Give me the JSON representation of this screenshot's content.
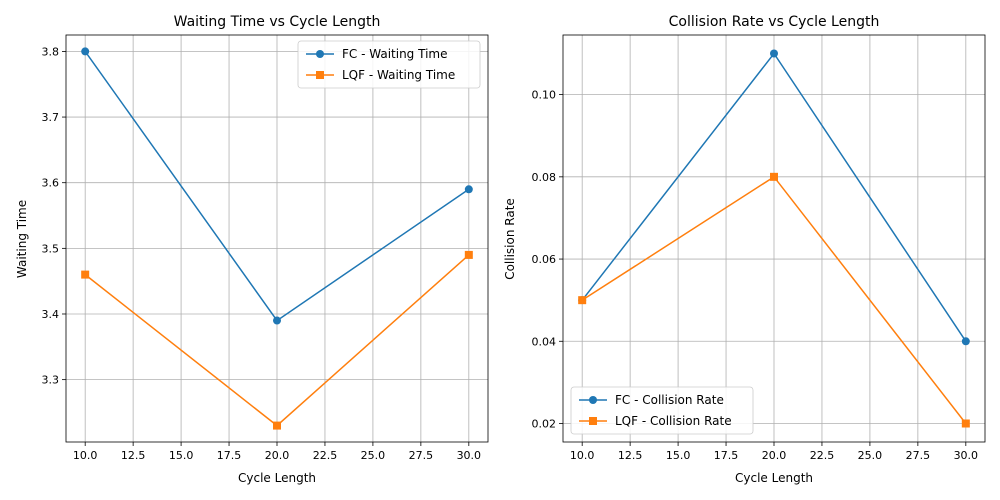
{
  "chart_data": [
    {
      "type": "line",
      "title": "Waiting Time vs Cycle Length",
      "xlabel": "Cycle Length",
      "ylabel": "Waiting Time",
      "x": [
        10,
        20,
        30
      ],
      "xlim": [
        9,
        31
      ],
      "ylim": [
        3.205,
        3.825
      ],
      "xticks": [
        10.0,
        12.5,
        15.0,
        17.5,
        20.0,
        22.5,
        25.0,
        27.5,
        30.0
      ],
      "xtick_labels": [
        "10.0",
        "12.5",
        "15.0",
        "17.5",
        "20.0",
        "22.5",
        "25.0",
        "27.5",
        "30.0"
      ],
      "yticks": [
        3.3,
        3.4,
        3.5,
        3.6,
        3.7,
        3.8
      ],
      "ytick_labels": [
        "3.3",
        "3.4",
        "3.5",
        "3.6",
        "3.7",
        "3.8"
      ],
      "grid": true,
      "legend_position": "top-right",
      "series": [
        {
          "name": "FC - Waiting Time",
          "values": [
            3.8,
            3.39,
            3.59
          ],
          "color": "#1f77b4",
          "marker": "circle"
        },
        {
          "name": "LQF - Waiting Time",
          "values": [
            3.46,
            3.23,
            3.49
          ],
          "color": "#ff7f0e",
          "marker": "square"
        }
      ]
    },
    {
      "type": "line",
      "title": "Collision Rate vs Cycle Length",
      "xlabel": "Cycle Length",
      "ylabel": "Collision Rate",
      "x": [
        10,
        20,
        30
      ],
      "xlim": [
        9,
        31
      ],
      "ylim": [
        0.0155,
        0.1145
      ],
      "xticks": [
        10.0,
        12.5,
        15.0,
        17.5,
        20.0,
        22.5,
        25.0,
        27.5,
        30.0
      ],
      "xtick_labels": [
        "10.0",
        "12.5",
        "15.0",
        "17.5",
        "20.0",
        "22.5",
        "25.0",
        "27.5",
        "30.0"
      ],
      "yticks": [
        0.02,
        0.04,
        0.06,
        0.08,
        0.1
      ],
      "ytick_labels": [
        "0.02",
        "0.04",
        "0.06",
        "0.08",
        "0.10"
      ],
      "grid": true,
      "legend_position": "bottom-left",
      "series": [
        {
          "name": "FC - Collision Rate",
          "values": [
            0.05,
            0.11,
            0.04
          ],
          "color": "#1f77b4",
          "marker": "circle"
        },
        {
          "name": "LQF - Collision Rate",
          "values": [
            0.05,
            0.08,
            0.02
          ],
          "color": "#ff7f0e",
          "marker": "square"
        }
      ]
    }
  ]
}
